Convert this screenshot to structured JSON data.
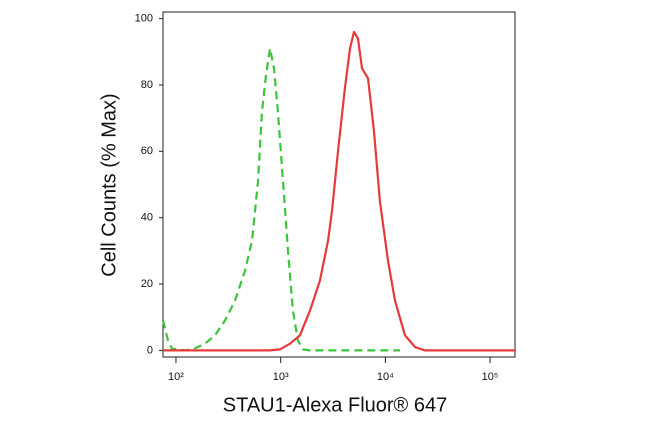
{
  "chart_data": {
    "type": "line",
    "xscale": "log",
    "xlabel": "STAU1-Alexa Fluor® 647",
    "ylabel": "Cell Counts (% Max)",
    "xlim": [
      75.2,
      173000
    ],
    "ylim": [
      -2,
      102
    ],
    "xticks": [
      {
        "value": 100,
        "label": "10²"
      },
      {
        "value": 1000,
        "label": "10³"
      },
      {
        "value": 10000,
        "label": "10⁴"
      },
      {
        "value": 100000,
        "label": "10⁵"
      }
    ],
    "yticks": [
      0,
      20,
      40,
      60,
      80,
      100
    ],
    "series": [
      {
        "color": "#3cc43c",
        "dashed": true,
        "x": [
          75.2,
          84,
          91.6,
          122,
          152,
          189,
          236,
          294,
          366,
          456,
          532,
          607,
          663,
          724,
          791,
          863,
          942,
          1052,
          1175,
          1310,
          1462,
          1633,
          1905,
          4590,
          13800
        ],
        "values": [
          9,
          3,
          0.5,
          0,
          0.6,
          2,
          4.5,
          9,
          15,
          24,
          33,
          51,
          72,
          83,
          91,
          85,
          72,
          51,
          30,
          12,
          3,
          0.3,
          0,
          0,
          0
        ]
      },
      {
        "color": "#e8393a",
        "dashed": false,
        "x": [
          75.2,
          791,
          984,
          1227,
          1528,
          1905,
          2372,
          2829,
          3090,
          3526,
          4111,
          4590,
          5012,
          5472,
          5980,
          6823,
          7780,
          8870,
          10590,
          12360,
          15390,
          19170,
          23880,
          173000
        ],
        "values": [
          0,
          0,
          0.3,
          2,
          4.5,
          12,
          21,
          33,
          42,
          60,
          79,
          91,
          96,
          94,
          85,
          82,
          66,
          45,
          27,
          15,
          4.5,
          1,
          0,
          0
        ]
      }
    ]
  }
}
